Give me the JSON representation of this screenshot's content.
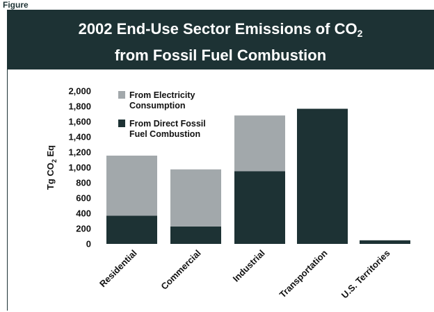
{
  "figure_label": "Figure",
  "chart_data": {
    "type": "bar",
    "stacked": true,
    "title_line1": "2002 End-Use Sector Emissions of CO",
    "title_sub": "2",
    "title_line2": "from Fossil Fuel Combustion",
    "ylabel_main": "Tg CO",
    "ylabel_sub": "2",
    "ylabel_tail": " Eq",
    "ylim": [
      0,
      2000
    ],
    "yticks": [
      0,
      200,
      400,
      600,
      800,
      1000,
      1200,
      1400,
      1600,
      1800,
      2000
    ],
    "ytick_labels": [
      "0",
      "200",
      "400",
      "600",
      "800",
      "1,000",
      "1,200",
      "1,400",
      "1,600",
      "1,800",
      "2,000"
    ],
    "categories": [
      "Residential",
      "Commercial",
      "Industrial",
      "Transportation",
      "U.S. Territories"
    ],
    "series": [
      {
        "name": "From Direct Fossil Fuel Combustion",
        "values": [
          370,
          228,
          950,
          1768,
          47
        ],
        "color": "#1d3234"
      },
      {
        "name": "From Electricity Consumption",
        "values": [
          785,
          747,
          730,
          0,
          0
        ],
        "color": "#a2a8ab"
      }
    ],
    "legend": [
      {
        "line1": "From Electricity",
        "line2": "Consumption",
        "color": "#a2a8ab"
      },
      {
        "line1": "From Direct Fossil",
        "line2": "Fuel Combustion",
        "color": "#1d3234"
      }
    ],
    "legend_position": "top-left",
    "grid": false
  }
}
